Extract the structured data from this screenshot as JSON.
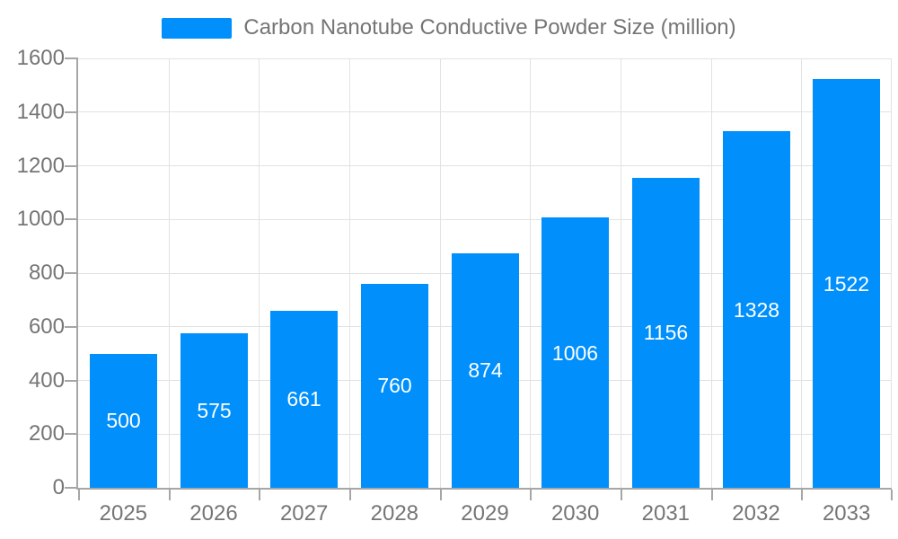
{
  "chart_data": {
    "type": "bar",
    "title": "Carbon Nanotube Conductive Powder Size (million)",
    "categories": [
      "2025",
      "2026",
      "2027",
      "2028",
      "2029",
      "2030",
      "2031",
      "2032",
      "2033"
    ],
    "values": [
      500,
      575,
      661,
      760,
      874,
      1006,
      1156,
      1328,
      1522
    ],
    "xlabel": "",
    "ylabel": "",
    "ylim": [
      0,
      1600
    ],
    "y_ticks": [
      0,
      200,
      400,
      600,
      800,
      1000,
      1200,
      1400,
      1600
    ],
    "grid": true,
    "legend_position": "top",
    "colors": {
      "bar": "#008ffb",
      "grid": "#e2e2e2",
      "axis": "#a6a6a6",
      "axis_label": "#757575",
      "value_label": "#ffffff",
      "background": "#ffffff"
    }
  }
}
